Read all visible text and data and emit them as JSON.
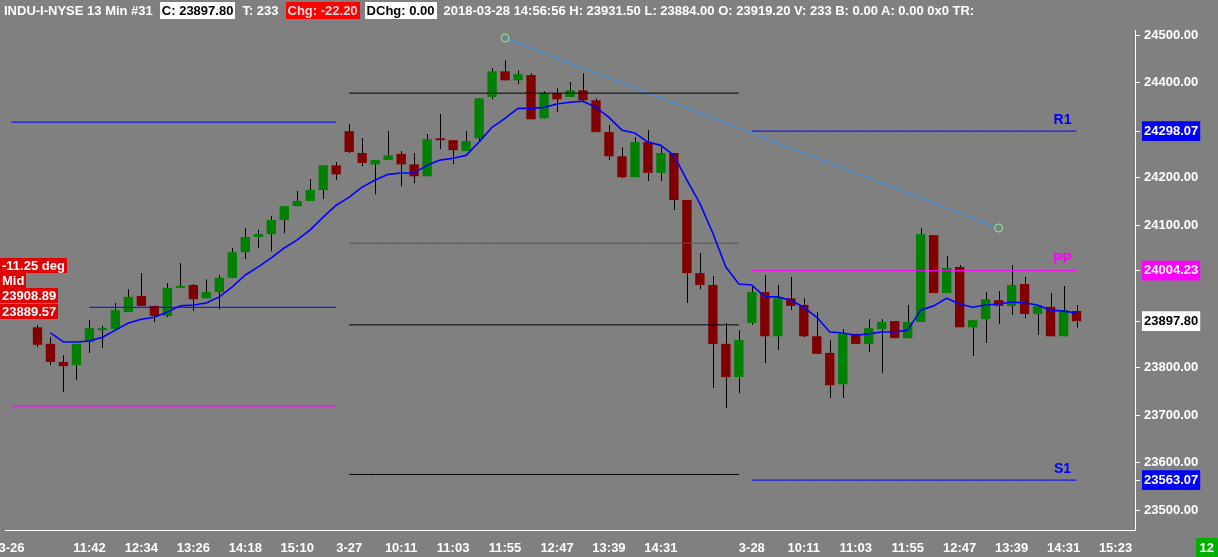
{
  "chart_data": {
    "type": "candlestick",
    "title": "INDU-I-NYSE  13 Min  #31",
    "categories": [
      "3-26",
      null,
      null,
      null,
      null,
      null,
      "11:42",
      null,
      null,
      null,
      "12:34",
      null,
      null,
      null,
      "13:26",
      null,
      null,
      null,
      "14:18",
      null,
      null,
      null,
      "15:10",
      null,
      null,
      null,
      "3-27",
      null,
      null,
      null,
      "10:11",
      null,
      null,
      null,
      "11:03",
      null,
      null,
      null,
      "11:55",
      null,
      null,
      null,
      "12:47",
      null,
      null,
      null,
      "13:39",
      null,
      null,
      null,
      "14:31",
      null,
      null,
      null,
      null,
      null,
      null,
      "3-28",
      null,
      null,
      null,
      "10:11",
      null,
      null,
      null,
      "11:03",
      null,
      null,
      null,
      "11:55",
      null,
      null,
      null,
      "12:47",
      null,
      null,
      null,
      "13:39",
      null,
      null,
      null,
      "14:31",
      null,
      null,
      null,
      "15:23",
      null
    ],
    "ylim": [
      23458,
      24511
    ],
    "yticks": [
      {
        "value": 23500,
        "label": "23500.00"
      },
      23563.07,
      {
        "value": 23600,
        "label": "23600.00"
      },
      {
        "value": 23700,
        "label": "23700.00"
      },
      {
        "value": 23800,
        "label": "23800.00"
      },
      {
        "value": 23897.8,
        "label": "23897.80"
      },
      24004.23,
      {
        "value": 24100,
        "label": "24100.00"
      },
      {
        "value": 24200,
        "label": "24200.00"
      },
      24298.07,
      {
        "value": 24400,
        "label": "24400.00"
      },
      {
        "value": 24500,
        "label": "24500.00"
      }
    ],
    "legend": false,
    "series": [
      {
        "ohlc": [
          null,
          null,
          [
            23885,
            23890,
            23843,
            23848
          ],
          [
            23850,
            23864,
            23805,
            23812
          ],
          [
            23812,
            23826,
            23749,
            23803
          ],
          [
            23805,
            23850,
            23774,
            23850
          ],
          [
            23854,
            23900,
            23831,
            23883
          ],
          [
            23879,
            23888,
            23841,
            23883
          ],
          [
            23881,
            23936,
            23881,
            23921
          ],
          [
            23917,
            23965,
            23917,
            23949
          ],
          [
            23951,
            23999,
            23930,
            23930
          ],
          [
            23930,
            23930,
            23896,
            23909
          ],
          [
            23909,
            23978,
            23906,
            23968
          ],
          [
            23968,
            24020,
            23968,
            23972
          ],
          [
            23974,
            23976,
            23919,
            23944
          ],
          [
            23946,
            23986,
            23946,
            23959
          ],
          [
            23959,
            23995,
            23923,
            23989
          ],
          [
            23989,
            24052,
            23989,
            24043
          ],
          [
            24043,
            24094,
            24029,
            24075
          ],
          [
            24075,
            24090,
            24052,
            24081
          ],
          [
            24081,
            24119,
            24045,
            24111
          ],
          [
            24111,
            24140,
            24083,
            24140
          ],
          [
            24140,
            24172,
            24140,
            24151
          ],
          [
            24151,
            24197,
            24151,
            24174
          ],
          [
            24174,
            24226,
            24155,
            24226
          ],
          [
            24226,
            24233,
            24195,
            24207
          ],
          [
            24298,
            24313,
            24252,
            24254
          ],
          [
            24252,
            24283,
            24224,
            24231
          ],
          [
            24228,
            24237,
            24165,
            24237
          ],
          [
            24237,
            24298,
            24237,
            24247
          ],
          [
            24250,
            24256,
            24182,
            24228
          ],
          [
            24228,
            24252,
            24188,
            24203
          ],
          [
            24203,
            24292,
            24203,
            24281
          ],
          [
            24283,
            24334,
            24260,
            24279
          ],
          [
            24279,
            24279,
            24228,
            24258
          ],
          [
            24256,
            24298,
            24256,
            24277
          ],
          [
            24283,
            24367,
            24277,
            24367
          ],
          [
            24370,
            24431,
            24365,
            24424
          ],
          [
            24424,
            24447,
            24405,
            24405
          ],
          [
            24405,
            24426,
            24397,
            24418
          ],
          [
            24416,
            24420,
            24323,
            24323
          ],
          [
            24325,
            24382,
            24325,
            24378
          ],
          [
            24378,
            24388,
            24338,
            24365
          ],
          [
            24370,
            24401,
            24370,
            24384
          ],
          [
            24384,
            24420,
            24359,
            24363
          ],
          [
            24363,
            24367,
            24296,
            24296
          ],
          [
            24296,
            24311,
            24237,
            24245
          ],
          [
            24245,
            24264,
            24199,
            24201
          ],
          [
            24201,
            24285,
            24201,
            24275
          ],
          [
            24275,
            24300,
            24193,
            24210
          ],
          [
            24210,
            24264,
            24193,
            24252
          ],
          [
            24252,
            24252,
            24132,
            24153
          ],
          [
            24153,
            24153,
            23936,
            23999
          ],
          [
            23999,
            24041,
            23965,
            23974
          ],
          [
            23974,
            23993,
            23757,
            23850
          ],
          [
            23850,
            23894,
            23715,
            23780
          ],
          [
            23780,
            23879,
            23746,
            23858
          ],
          [
            23894,
            23970,
            23890,
            23959
          ],
          [
            23959,
            23995,
            23810,
            23866
          ],
          [
            23866,
            23974,
            23837,
            23946
          ],
          [
            23946,
            23991,
            23921,
            23930
          ],
          [
            23932,
            23946,
            23864,
            23866
          ],
          [
            23866,
            23917,
            23829,
            23829
          ],
          [
            23831,
            23858,
            23736,
            23763
          ],
          [
            23765,
            23881,
            23736,
            23871
          ],
          [
            23871,
            23871,
            23850,
            23850
          ],
          [
            23850,
            23902,
            23833,
            23883
          ],
          [
            23881,
            23902,
            23789,
            23896
          ],
          [
            23898,
            23898,
            23862,
            23862
          ],
          [
            23862,
            23932,
            23862,
            23896
          ],
          [
            23896,
            24094,
            23896,
            24081
          ],
          [
            24079,
            24079,
            23957,
            23957
          ],
          [
            23957,
            24035,
            23957,
            24010
          ],
          [
            24012,
            24016,
            23885,
            23885
          ],
          [
            23885,
            23900,
            23824,
            23900
          ],
          [
            23902,
            23959,
            23852,
            23944
          ],
          [
            23942,
            23961,
            23892,
            23930
          ],
          [
            23930,
            24016,
            23911,
            23974
          ],
          [
            23976,
            23991,
            23904,
            23913
          ],
          [
            23913,
            23930,
            23869,
            23930
          ],
          [
            23928,
            23957,
            23866,
            23866
          ],
          [
            23866,
            23972,
            23866,
            23921
          ],
          [
            23919.2,
            23931.5,
            23884,
            23897.8
          ],
          null,
          null,
          null,
          null
        ],
        "colors": [
          null,
          null,
          "#800000",
          "#800000",
          "#800000",
          "#008000",
          "#008000",
          "#008000",
          "#008000",
          "#008000",
          "#800000",
          "#800000",
          "#008000",
          "#008000",
          "#800000",
          "#008000",
          "#008000",
          "#008000",
          "#008000",
          "#008000",
          "#008000",
          "#008000",
          "#008000",
          "#008000",
          "#008000",
          "#800000",
          "#800000",
          "#800000",
          "#008000",
          "#008000",
          "#800000",
          "#800000",
          "#008000",
          "#800000",
          "#800000",
          "#008000",
          "#008000",
          "#008000",
          "#800000",
          "#008000",
          "#800000",
          "#008000",
          "#800000",
          "#008000",
          "#800000",
          "#800000",
          "#800000",
          "#800000",
          "#008000",
          "#800000",
          "#008000",
          "#800000",
          "#800000",
          "#800000",
          "#800000",
          "#800000",
          "#008000",
          "#008000",
          "#800000",
          "#008000",
          "#800000",
          "#800000",
          "#800000",
          "#800000",
          "#008000",
          "#800000",
          "#008000",
          "#008000",
          "#800000",
          "#008000",
          "#008000",
          "#800000",
          "#008000",
          "#800000",
          "#008000",
          "#008000",
          "#800000",
          "#008000",
          "#800000",
          "#008000",
          "#800000",
          "#008000",
          "#800000",
          null,
          null,
          null,
          null
        ]
      },
      {
        "type": "line",
        "color": "#0000ff",
        "values": [
          null,
          null,
          null,
          23873,
          23854,
          23854,
          23856,
          23864,
          23879,
          23894,
          23902,
          23906,
          23917,
          23930,
          23932,
          23936,
          23949,
          23970,
          23995,
          24012,
          24031,
          24052,
          24069,
          24090,
          24117,
          24142,
          24159,
          24180,
          24195,
          24207,
          24210,
          24210,
          24226,
          24237,
          24241,
          24247,
          24275,
          24306,
          24325,
          24346,
          24346,
          24348,
          24355,
          24359,
          24361,
          24348,
          24327,
          24300,
          24294,
          24275,
          24268,
          24247,
          24195,
          24146,
          24083,
          24012,
          23976,
          23974,
          23949,
          23949,
          23942,
          23927,
          23906,
          23875,
          23873,
          23868,
          23871,
          23875,
          23875,
          23879,
          23921,
          23930,
          23946,
          23934,
          23927,
          23932,
          23934,
          23938,
          23936,
          23932,
          23921,
          23919,
          23915,
          null,
          null,
          null,
          null
        ]
      },
      {
        "type": "line",
        "color": "#0000ff",
        "values": [
          24317,
          24317,
          24317,
          24317,
          24317,
          24317,
          24317,
          24317,
          24317,
          24317,
          24317,
          24317,
          24317,
          24317,
          24317,
          24317,
          24317,
          24317,
          24317,
          24317,
          24317,
          24317,
          24317,
          24317,
          24317,
          24317,
          null,
          null,
          null,
          null,
          null,
          null,
          null,
          null,
          null,
          null,
          null,
          null,
          null,
          null,
          null,
          null,
          null,
          null,
          null,
          null,
          null,
          null,
          null,
          null,
          null,
          null,
          null,
          null,
          null,
          null,
          null,
          null,
          null,
          null,
          null,
          null,
          null,
          null,
          null,
          null,
          null,
          null,
          null,
          null,
          null,
          null,
          null,
          null,
          null,
          null,
          null,
          null,
          null,
          null,
          null,
          null,
          null,
          null,
          null,
          null,
          null
        ]
      },
      {
        "type": "line",
        "color": "#0000ff",
        "values": [
          null,
          null,
          null,
          null,
          null,
          null,
          23927,
          23927,
          23927,
          23927,
          23927,
          23927,
          23927,
          23927,
          23927,
          23927,
          23927,
          23927,
          23927,
          23927,
          23927,
          23927,
          23927,
          23927,
          23927,
          23927,
          null,
          null,
          null,
          null,
          null,
          null,
          null,
          null,
          null,
          null,
          null,
          null,
          null,
          null,
          null,
          null,
          null,
          null,
          null,
          null,
          null,
          null,
          null,
          null,
          null,
          null,
          null,
          null,
          null,
          null,
          null,
          null,
          null,
          null,
          null,
          null,
          null,
          null,
          null,
          null,
          null,
          null,
          null,
          null,
          null,
          null,
          null,
          null,
          null,
          null,
          null,
          null,
          null,
          null,
          null,
          null,
          null,
          null,
          null,
          null,
          null
        ]
      },
      {
        "type": "line",
        "color": "#ff00ff",
        "values": [
          23719,
          23719,
          23719,
          23719,
          23719,
          23719,
          23719,
          23719,
          23719,
          23719,
          23719,
          23719,
          23719,
          23719,
          23719,
          23719,
          23719,
          23719,
          23719,
          23719,
          23719,
          23719,
          23719,
          23719,
          23719,
          23719,
          null,
          null,
          null,
          null,
          null,
          null,
          null,
          null,
          null,
          null,
          null,
          null,
          null,
          null,
          null,
          null,
          null,
          null,
          null,
          null,
          null,
          null,
          null,
          null,
          null,
          null,
          null,
          null,
          null,
          null,
          null,
          null,
          null,
          null,
          null,
          null,
          null,
          null,
          null,
          null,
          null,
          null,
          null,
          null,
          null,
          null,
          null,
          null,
          null,
          null,
          null,
          null,
          null,
          null,
          null,
          null,
          null,
          null,
          null,
          null,
          null
        ]
      },
      {
        "type": "line",
        "color": "#000000",
        "values": [
          null,
          null,
          null,
          null,
          null,
          null,
          null,
          null,
          null,
          null,
          null,
          null,
          null,
          null,
          null,
          null,
          null,
          null,
          null,
          null,
          null,
          null,
          null,
          null,
          null,
          null,
          24378,
          24378,
          24378,
          24378,
          24378,
          24378,
          24378,
          24378,
          24378,
          24378,
          24378,
          24378,
          24378,
          24378,
          24378,
          24378,
          24378,
          24378,
          24378,
          24378,
          24378,
          24378,
          24378,
          24378,
          24378,
          24378,
          24378,
          24378,
          24378,
          24378,
          24378,
          null,
          null,
          null,
          null,
          null,
          null,
          null,
          null,
          null,
          null,
          null,
          null,
          null,
          null,
          null,
          null,
          null,
          null,
          null,
          null,
          null,
          null,
          null,
          null,
          null,
          null,
          null,
          null,
          null,
          null
        ]
      },
      {
        "type": "line",
        "color": "#555555",
        "values": [
          null,
          null,
          null,
          null,
          null,
          null,
          null,
          null,
          null,
          null,
          null,
          null,
          null,
          null,
          null,
          null,
          null,
          null,
          null,
          null,
          null,
          null,
          null,
          null,
          null,
          null,
          24062,
          24062,
          24062,
          24062,
          24062,
          24062,
          24062,
          24062,
          24062,
          24062,
          24062,
          24062,
          24062,
          24062,
          24062,
          24062,
          24062,
          24062,
          24062,
          24062,
          24062,
          24062,
          24062,
          24062,
          24062,
          24062,
          24062,
          24062,
          24062,
          24062,
          24062,
          null,
          null,
          null,
          null,
          null,
          null,
          null,
          null,
          null,
          null,
          null,
          null,
          null,
          null,
          null,
          null,
          null,
          null,
          null,
          null,
          null,
          null,
          null,
          null,
          null,
          null,
          null,
          null,
          null,
          null
        ]
      },
      {
        "type": "line",
        "color": "#000000",
        "values": [
          null,
          null,
          null,
          null,
          null,
          null,
          null,
          null,
          null,
          null,
          null,
          null,
          null,
          null,
          null,
          null,
          null,
          null,
          null,
          null,
          null,
          null,
          null,
          null,
          null,
          null,
          23890,
          23890,
          23890,
          23890,
          23890,
          23890,
          23890,
          23890,
          23890,
          23890,
          23890,
          23890,
          23890,
          23890,
          23890,
          23890,
          23890,
          23890,
          23890,
          23890,
          23890,
          23890,
          23890,
          23890,
          23890,
          23890,
          23890,
          23890,
          23890,
          23890,
          23890,
          null,
          null,
          null,
          null,
          null,
          null,
          null,
          null,
          null,
          null,
          null,
          null,
          null,
          null,
          null,
          null,
          null,
          null,
          null,
          null,
          null,
          null,
          null,
          null,
          null,
          null,
          null,
          null,
          null,
          null
        ]
      },
      {
        "type": "line",
        "color": "#000000",
        "values": [
          null,
          null,
          null,
          null,
          null,
          null,
          null,
          null,
          null,
          null,
          null,
          null,
          null,
          null,
          null,
          null,
          null,
          null,
          null,
          null,
          null,
          null,
          null,
          null,
          null,
          null,
          23575,
          23575,
          23575,
          23575,
          23575,
          23575,
          23575,
          23575,
          23575,
          23575,
          23575,
          23575,
          23575,
          23575,
          23575,
          23575,
          23575,
          23575,
          23575,
          23575,
          23575,
          23575,
          23575,
          23575,
          23575,
          23575,
          23575,
          23575,
          23575,
          23575,
          23575,
          null,
          null,
          null,
          null,
          null,
          null,
          null,
          null,
          null,
          null,
          null,
          null,
          null,
          null,
          null,
          null,
          null,
          null,
          null,
          null,
          null,
          null,
          null,
          null,
          null,
          null,
          null,
          null,
          null,
          null
        ]
      },
      {
        "type": "line",
        "name": "R1",
        "color": "#0000ff",
        "values": [
          null,
          null,
          null,
          null,
          null,
          null,
          null,
          null,
          null,
          null,
          null,
          null,
          null,
          null,
          null,
          null,
          null,
          null,
          null,
          null,
          null,
          null,
          null,
          null,
          null,
          null,
          null,
          null,
          null,
          null,
          null,
          null,
          null,
          null,
          null,
          null,
          null,
          null,
          null,
          null,
          null,
          null,
          null,
          null,
          null,
          null,
          null,
          null,
          null,
          null,
          null,
          null,
          null,
          null,
          null,
          null,
          null,
          24298.07,
          24298.07,
          24298.07,
          24298.07,
          24298.07,
          24298.07,
          24298.07,
          24298.07,
          24298.07,
          24298.07,
          24298.07,
          24298.07,
          24298.07,
          24298.07,
          24298.07,
          24298.07,
          24298.07,
          24298.07,
          24298.07,
          24298.07,
          24298.07,
          24298.07,
          24298.07,
          24298.07,
          24298.07,
          24298.07,
          null,
          null,
          null,
          null
        ]
      },
      {
        "type": "line",
        "name": "PP",
        "color": "#ff00ff",
        "values": [
          null,
          null,
          null,
          null,
          null,
          null,
          null,
          null,
          null,
          null,
          null,
          null,
          null,
          null,
          null,
          null,
          null,
          null,
          null,
          null,
          null,
          null,
          null,
          null,
          null,
          null,
          null,
          null,
          null,
          null,
          null,
          null,
          null,
          null,
          null,
          null,
          null,
          null,
          null,
          null,
          null,
          null,
          null,
          null,
          null,
          null,
          null,
          null,
          null,
          null,
          null,
          null,
          null,
          null,
          null,
          null,
          null,
          24004.23,
          24004.23,
          24004.23,
          24004.23,
          24004.23,
          24004.23,
          24004.23,
          24004.23,
          24004.23,
          24004.23,
          24004.23,
          24004.23,
          24004.23,
          24004.23,
          24004.23,
          24004.23,
          24004.23,
          24004.23,
          24004.23,
          24004.23,
          24004.23,
          24004.23,
          24004.23,
          24004.23,
          24004.23,
          24004.23,
          null,
          null,
          null,
          null
        ]
      },
      {
        "type": "line",
        "name": "S1",
        "color": "#0000ff",
        "values": [
          null,
          null,
          null,
          null,
          null,
          null,
          null,
          null,
          null,
          null,
          null,
          null,
          null,
          null,
          null,
          null,
          null,
          null,
          null,
          null,
          null,
          null,
          null,
          null,
          null,
          null,
          null,
          null,
          null,
          null,
          null,
          null,
          null,
          null,
          null,
          null,
          null,
          null,
          null,
          null,
          null,
          null,
          null,
          null,
          null,
          null,
          null,
          null,
          null,
          null,
          null,
          null,
          null,
          null,
          null,
          null,
          null,
          23563.07,
          23563.07,
          23563.07,
          23563.07,
          23563.07,
          23563.07,
          23563.07,
          23563.07,
          23563.07,
          23563.07,
          23563.07,
          23563.07,
          23563.07,
          23563.07,
          23563.07,
          23563.07,
          23563.07,
          23563.07,
          23563.07,
          23563.07,
          23563.07,
          23563.07,
          23563.07,
          23563.07,
          23563.07,
          23563.07,
          null,
          null,
          null,
          null
        ]
      },
      {
        "type": "line",
        "color": "#3399ff",
        "marker": "circle",
        "values": [
          null,
          null,
          null,
          null,
          null,
          null,
          null,
          null,
          null,
          null,
          null,
          null,
          null,
          null,
          null,
          null,
          null,
          null,
          null,
          null,
          null,
          null,
          null,
          null,
          null,
          null,
          null,
          null,
          null,
          null,
          null,
          null,
          null,
          null,
          null,
          null,
          null,
          null,
          24494,
          null,
          null,
          null,
          null,
          null,
          null,
          null,
          null,
          null,
          null,
          null,
          null,
          null,
          null,
          null,
          null,
          null,
          null,
          null,
          null,
          null,
          null,
          null,
          null,
          null,
          null,
          null,
          null,
          null,
          null,
          null,
          null,
          null,
          null,
          null,
          null,
          null,
          24094,
          null,
          null,
          null,
          null,
          null,
          null,
          null,
          null,
          null,
          null
        ]
      }
    ],
    "annotations": [
      "C: 23897.80",
      "T: 233",
      "Chg: -22.20",
      "DChg: 0.00",
      "2018-03-28 14:56:56 H: 23931.50 L: 23884.00 O: 23919.20 V: 233 B: 0.00 A: 0.00 0x0 TR:",
      "-11.25 deg",
      "Mid",
      "23908.89",
      "23889.57",
      "12"
    ]
  }
}
